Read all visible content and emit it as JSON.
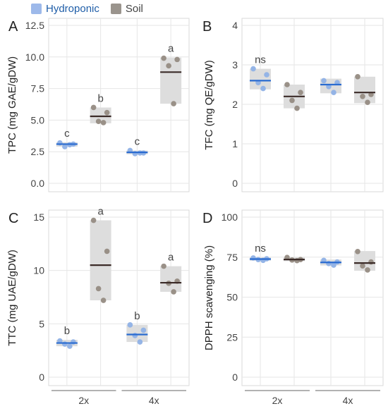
{
  "legend": [
    {
      "name": "Hydroponic",
      "color": "#9db9ea",
      "text_color": "#1f5ea8"
    },
    {
      "name": "Soil",
      "color": "#9a948d",
      "text_color": "#444444"
    }
  ],
  "colors": {
    "hydro_point": "#8fb1e6",
    "soil_point": "#958b82",
    "hydro_line": "#2a6bd0",
    "soil_line": "#3b2b28",
    "box_fill": "#dddddd",
    "grid": "#e6e6e6"
  },
  "chart_data": [
    {
      "panel": "A",
      "type": "scatter",
      "ylabel": "TPC (mg GAE/gDW)",
      "ylim": [
        0,
        12.5
      ],
      "yticks": [
        "0.0",
        "2.5",
        "5.0",
        "7.5",
        "10.0",
        "12.5"
      ],
      "categories": [
        "2x",
        "4x"
      ],
      "series": [
        {
          "name": "Hydroponic",
          "group": "2x",
          "points": [
            3.2,
            3.1,
            2.9,
            3.05
          ],
          "mean": 3.1,
          "box": [
            2.9,
            3.25
          ],
          "letter": "c"
        },
        {
          "name": "Soil",
          "group": "2x",
          "points": [
            6.0,
            5.6,
            4.9,
            4.8
          ],
          "mean": 5.3,
          "box": [
            4.75,
            6.0
          ],
          "letter": "b"
        },
        {
          "name": "Hydroponic",
          "group": "4x",
          "points": [
            2.6,
            2.4,
            2.35,
            2.4
          ],
          "mean": 2.45,
          "box": [
            2.3,
            2.6
          ],
          "letter": "c"
        },
        {
          "name": "Soil",
          "group": "4x",
          "points": [
            9.9,
            9.8,
            9.3,
            6.3
          ],
          "mean": 8.8,
          "box": [
            6.3,
            9.95
          ],
          "letter": "a"
        }
      ]
    },
    {
      "panel": "B",
      "type": "scatter",
      "ylabel": "TFC (mg QE/gDW)",
      "ylim": [
        0,
        4
      ],
      "yticks": [
        "0",
        "1",
        "2",
        "3",
        "4"
      ],
      "categories": [
        "2x",
        "4x"
      ],
      "series": [
        {
          "name": "Hydroponic",
          "group": "2x",
          "points": [
            2.9,
            2.75,
            2.55,
            2.4
          ],
          "mean": 2.6,
          "box": [
            2.38,
            2.9
          ],
          "letter": "ns"
        },
        {
          "name": "Soil",
          "group": "2x",
          "points": [
            2.5,
            2.3,
            2.1,
            1.9
          ],
          "mean": 2.2,
          "box": [
            1.9,
            2.5
          ],
          "letter": ""
        },
        {
          "name": "Hydroponic",
          "group": "4x",
          "points": [
            2.6,
            2.55,
            2.45,
            2.3
          ],
          "mean": 2.5,
          "box": [
            2.28,
            2.65
          ],
          "letter": ""
        },
        {
          "name": "Soil",
          "group": "4x",
          "points": [
            2.7,
            2.25,
            2.2,
            2.05
          ],
          "mean": 2.3,
          "box": [
            2.03,
            2.7
          ],
          "letter": ""
        }
      ]
    },
    {
      "panel": "C",
      "type": "scatter",
      "ylabel": "TTC (mg UAE/gDW)",
      "ylim": [
        0,
        15
      ],
      "yticks": [
        "0",
        "5",
        "10",
        "15"
      ],
      "categories": [
        "2x",
        "4x"
      ],
      "series": [
        {
          "name": "Hydroponic",
          "group": "2x",
          "points": [
            3.4,
            3.3,
            3.1,
            2.9
          ],
          "mean": 3.2,
          "box": [
            2.9,
            3.5
          ],
          "letter": "b"
        },
        {
          "name": "Soil",
          "group": "2x",
          "points": [
            14.7,
            11.8,
            8.3,
            7.2
          ],
          "mean": 10.5,
          "box": [
            7.2,
            14.7
          ],
          "letter": "a"
        },
        {
          "name": "Hydroponic",
          "group": "4x",
          "points": [
            4.9,
            4.4,
            3.9,
            3.3
          ],
          "mean": 4.0,
          "box": [
            3.3,
            4.9
          ],
          "letter": "b"
        },
        {
          "name": "Soil",
          "group": "4x",
          "points": [
            10.4,
            9.0,
            8.8,
            8.0
          ],
          "mean": 8.85,
          "box": [
            8.0,
            10.4
          ],
          "letter": "a"
        }
      ]
    },
    {
      "panel": "D",
      "type": "scatter",
      "ylabel": "DPPH scavenging (%)",
      "ylim": [
        0,
        100
      ],
      "yticks": [
        "0",
        "25",
        "50",
        "75",
        "100"
      ],
      "categories": [
        "2x",
        "4x"
      ],
      "series": [
        {
          "name": "Hydroponic",
          "group": "2x",
          "points": [
            74.5,
            74.0,
            73.5,
            73.0
          ],
          "mean": 73.8,
          "box": [
            72.8,
            74.8
          ],
          "letter": "ns"
        },
        {
          "name": "Soil",
          "group": "2x",
          "points": [
            74.8,
            73.5,
            73.2,
            72.8
          ],
          "mean": 73.5,
          "box": [
            72.5,
            75.0
          ],
          "letter": ""
        },
        {
          "name": "Hydroponic",
          "group": "4x",
          "points": [
            73.0,
            72.0,
            71.0,
            70.0
          ],
          "mean": 71.7,
          "box": [
            69.8,
            73.5
          ],
          "letter": ""
        },
        {
          "name": "Soil",
          "group": "4x",
          "points": [
            78.5,
            72.0,
            69.5,
            67.0
          ],
          "mean": 71.3,
          "box": [
            66.5,
            78.8
          ],
          "letter": ""
        }
      ]
    }
  ]
}
